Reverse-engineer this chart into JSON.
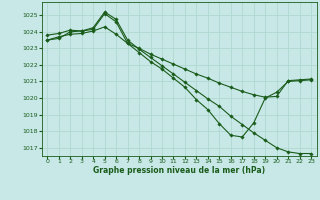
{
  "title": "Graphe pression niveau de la mer (hPa)",
  "bg_color": "#c8e8e8",
  "grid_color": "#b0d8d0",
  "line_color": "#1a5c1a",
  "xlim": [
    -0.5,
    23.5
  ],
  "ylim": [
    1016.5,
    1025.8
  ],
  "yticks": [
    1017,
    1018,
    1019,
    1020,
    1021,
    1022,
    1023,
    1024,
    1025
  ],
  "xticks": [
    0,
    1,
    2,
    3,
    4,
    5,
    6,
    7,
    8,
    9,
    10,
    11,
    12,
    13,
    14,
    15,
    16,
    17,
    18,
    19,
    20,
    21,
    22,
    23
  ],
  "line1": [
    1023.8,
    1023.9,
    1024.1,
    1024.05,
    1024.15,
    1025.1,
    1024.6,
    1023.3,
    1022.75,
    1022.2,
    1021.75,
    1021.2,
    1020.65,
    1019.9,
    1019.3,
    1018.45,
    1017.75,
    1017.65,
    1018.5,
    1020.0,
    1020.35,
    1021.0,
    1021.05,
    1021.1
  ],
  "line2": [
    1023.5,
    1023.7,
    1023.85,
    1023.9,
    1024.05,
    1024.3,
    1023.85,
    1023.3,
    1023.0,
    1022.65,
    1022.35,
    1022.05,
    1021.75,
    1021.45,
    1021.2,
    1020.9,
    1020.65,
    1020.4,
    1020.2,
    1020.05,
    1020.1,
    1021.05,
    1021.1,
    1021.15
  ],
  "line3": [
    1023.5,
    1023.6,
    1024.0,
    1024.05,
    1024.25,
    1025.2,
    1024.75,
    1023.5,
    1022.95,
    1022.45,
    1021.95,
    1021.45,
    1020.95,
    1020.45,
    1019.95,
    1019.5,
    1018.9,
    1018.4,
    1017.9,
    1017.45,
    1017.0,
    1016.75,
    1016.65,
    1016.65
  ]
}
